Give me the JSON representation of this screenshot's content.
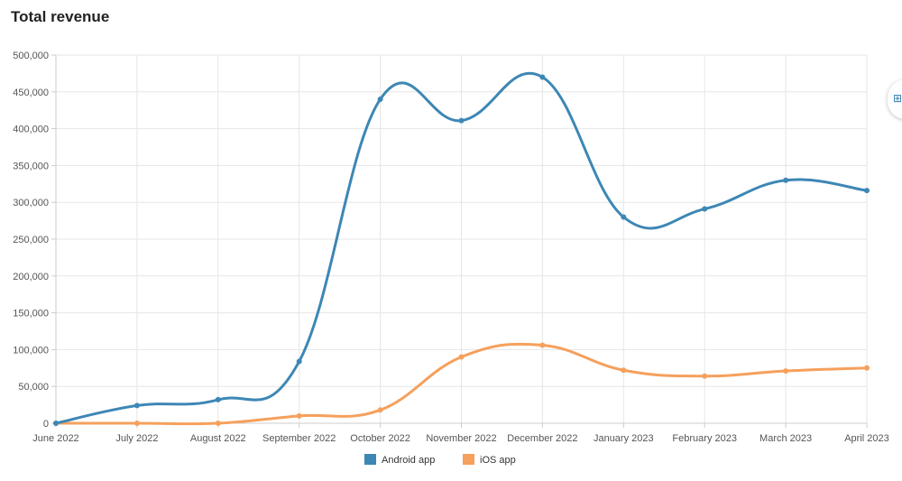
{
  "page": {
    "title": "Total revenue",
    "side_widget_glyph": "⊞"
  },
  "chart_data": {
    "type": "line",
    "title": "Total revenue",
    "xlabel": "",
    "ylabel": "",
    "categories": [
      "June 2022",
      "July 2022",
      "August 2022",
      "September 2022",
      "October 2022",
      "November 2022",
      "December 2022",
      "January 2023",
      "February 2023",
      "March 2023",
      "April 2023"
    ],
    "ylim": [
      0,
      500000
    ],
    "yticks": [
      0,
      50000,
      100000,
      150000,
      200000,
      250000,
      300000,
      350000,
      400000,
      450000,
      500000
    ],
    "ytick_labels": [
      "0",
      "50,000",
      "100,000",
      "150,000",
      "200,000",
      "250,000",
      "300,000",
      "350,000",
      "400,000",
      "450,000",
      "500,000"
    ],
    "grid": true,
    "legend_position": "bottom-center",
    "series": [
      {
        "name": "Android app",
        "color": "#3d87b5",
        "values": [
          0,
          24000,
          32000,
          84000,
          440000,
          411000,
          470000,
          280000,
          291000,
          330000,
          316000
        ]
      },
      {
        "name": "iOS app",
        "color": "#f5a05c",
        "values": [
          0,
          0,
          0,
          10000,
          18000,
          90000,
          106000,
          72000,
          64000,
          71000,
          75000
        ]
      }
    ]
  }
}
